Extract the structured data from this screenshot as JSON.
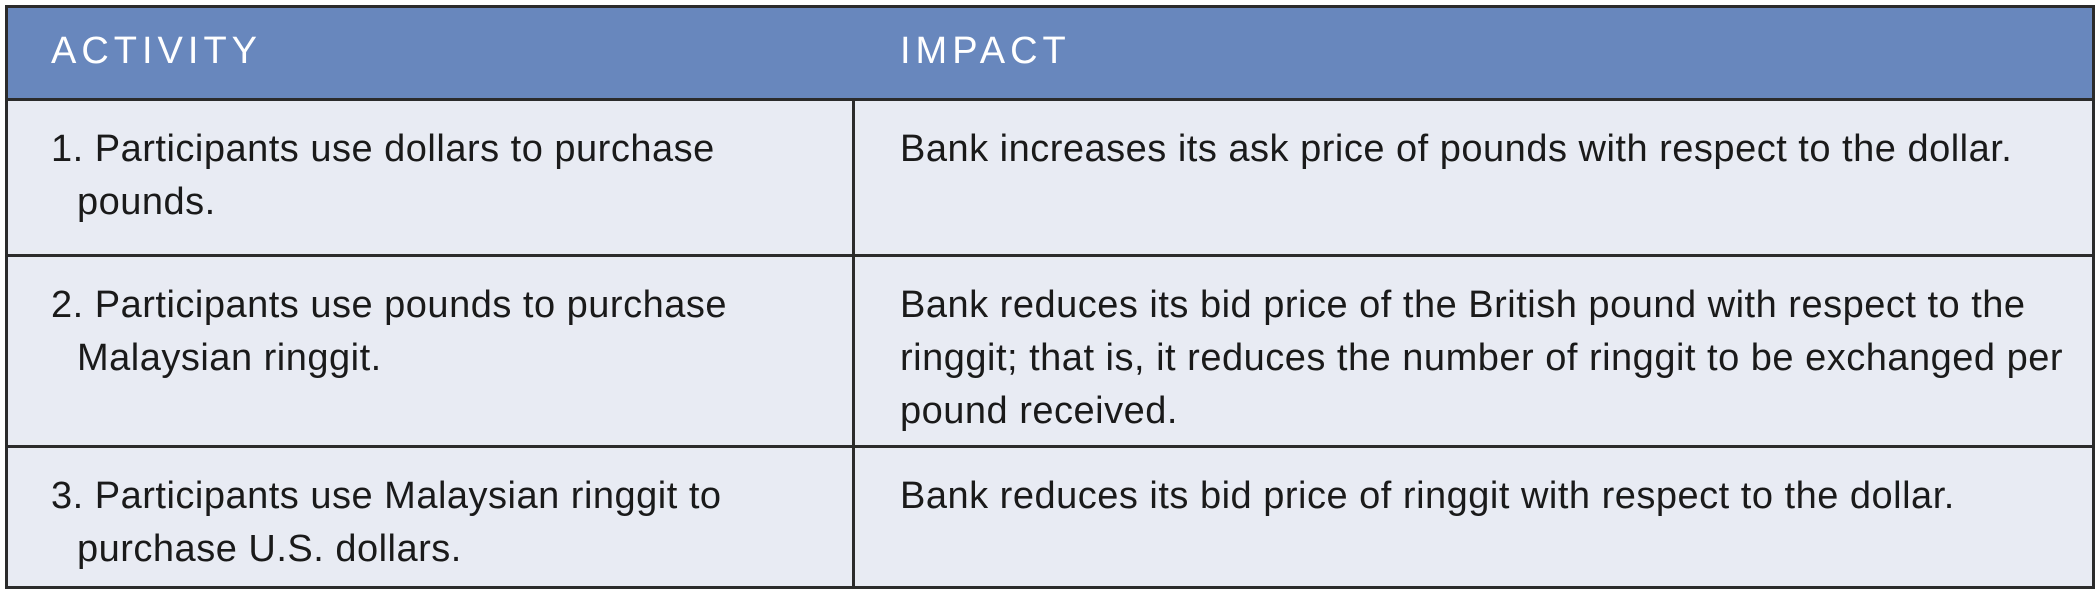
{
  "table": {
    "headers": {
      "activity": "ACTIVITY",
      "impact": "IMPACT"
    },
    "rows": [
      {
        "activity": "1. Participants use dollars to purchase pounds.",
        "impact": "Bank increases its ask price of pounds with respect to the dollar."
      },
      {
        "activity": "2. Participants use pounds to purchase Malaysian ringgit.",
        "impact": "Bank reduces its bid price of the British pound with respect to the ringgit; that is, it reduces the number of ringgit to be exchanged per pound received."
      },
      {
        "activity": "3. Participants use Malaysian ringgit to purchase U.S. dollars.",
        "impact": "Bank reduces its bid price of ringgit with respect to the dollar."
      }
    ]
  },
  "colors": {
    "header_background": "#6887bd",
    "body_background": "#e8ebf3",
    "border": "#2b2b2b"
  }
}
